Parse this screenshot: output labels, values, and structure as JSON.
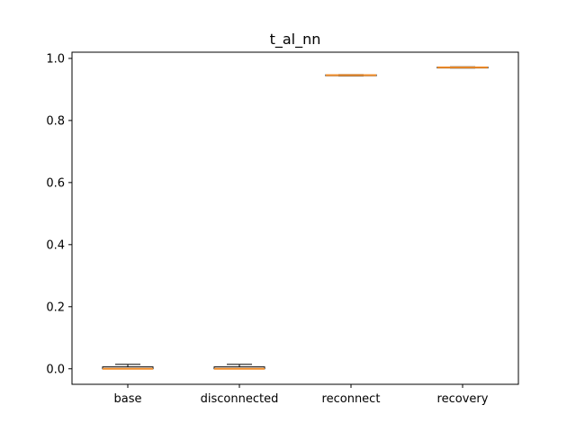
{
  "chart_data": {
    "type": "box",
    "title": "t_al_nn",
    "xlabel": "",
    "ylabel": "",
    "categories": [
      "base",
      "disconnected",
      "reconnect",
      "recovery"
    ],
    "boxes": [
      {
        "whisker_low": 0.0,
        "q1": 0.0,
        "median": 0.0,
        "q3": 0.006,
        "whisker_high": 0.014
      },
      {
        "whisker_low": 0.0,
        "q1": 0.0,
        "median": 0.0,
        "q3": 0.006,
        "whisker_high": 0.014
      },
      {
        "whisker_low": 0.944,
        "q1": 0.945,
        "median": 0.946,
        "q3": 0.947,
        "whisker_high": 0.948
      },
      {
        "whisker_low": 0.969,
        "q1": 0.97,
        "median": 0.971,
        "q3": 0.972,
        "whisker_high": 0.973
      }
    ],
    "ylim": [
      -0.05,
      1.02
    ],
    "yticks": [
      0.0,
      0.2,
      0.4,
      0.6,
      0.8,
      1.0
    ],
    "ytick_labels": [
      "0.0",
      "0.2",
      "0.4",
      "0.6",
      "0.8",
      "1.0"
    ],
    "grid": false,
    "colors": {
      "box": "#000000",
      "median": "#f28e2b",
      "background": "#ffffff"
    }
  }
}
